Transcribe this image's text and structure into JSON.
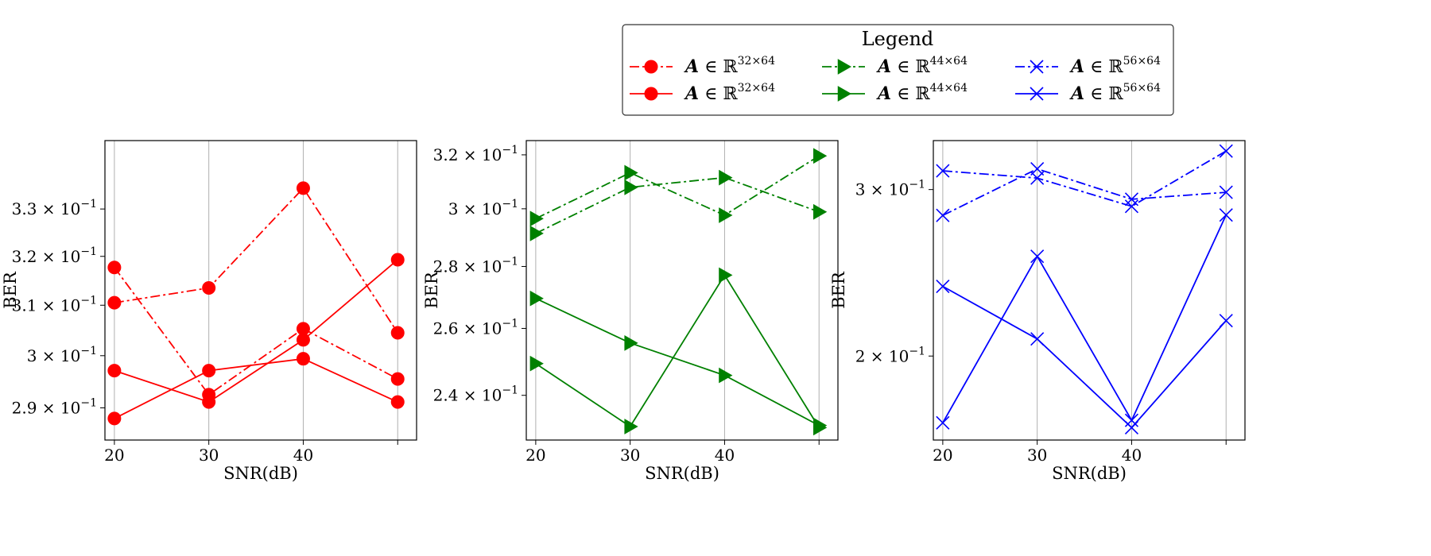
{
  "chart_data": [
    {
      "type": "line",
      "xlabel": "SNR(dB)",
      "ylabel": "BER",
      "x_ticks": [
        20,
        30,
        40
      ],
      "xlim": [
        19,
        52
      ],
      "y_scale": "log",
      "ylim": [
        0.284,
        0.345
      ],
      "y_ticks": [
        {
          "value": 0.29,
          "mantissa": "2.9",
          "exp": "−1"
        },
        {
          "value": 0.3,
          "mantissa": "3",
          "exp": "−1"
        },
        {
          "value": 0.31,
          "mantissa": "3.1",
          "exp": "−1"
        },
        {
          "value": 0.32,
          "mantissa": "3.2",
          "exp": "−1"
        },
        {
          "value": 0.33,
          "mantissa": "3.3",
          "exp": "−1"
        }
      ],
      "grid": "x",
      "color": "#ff0000",
      "series": [
        {
          "style": "dashdot",
          "marker": "circle",
          "x": [
            20,
            30,
            40,
            50
          ],
          "y": [
            0.3105,
            0.3135,
            0.3345,
            0.3045
          ]
        },
        {
          "style": "dashdot",
          "marker": "circle",
          "x": [
            20,
            30,
            40,
            50
          ],
          "y": [
            0.3177,
            0.2925,
            0.3053,
            0.2955
          ]
        },
        {
          "style": "solid",
          "marker": "circle",
          "x": [
            20,
            30,
            40,
            50
          ],
          "y": [
            0.2971,
            0.2911,
            0.3031,
            0.3193
          ]
        },
        {
          "style": "solid",
          "marker": "circle",
          "x": [
            20,
            30,
            40,
            50
          ],
          "y": [
            0.288,
            0.2971,
            0.2994,
            0.2911
          ]
        }
      ]
    },
    {
      "type": "line",
      "xlabel": "SNR(dB)",
      "ylabel": "BER",
      "x_ticks": [
        20,
        30,
        40
      ],
      "xlim": [
        19,
        52
      ],
      "y_scale": "log",
      "ylim": [
        0.2275,
        0.3255
      ],
      "y_ticks": [
        {
          "value": 0.24,
          "mantissa": "2.4",
          "exp": "−1"
        },
        {
          "value": 0.26,
          "mantissa": "2.6",
          "exp": "−1"
        },
        {
          "value": 0.28,
          "mantissa": "2.8",
          "exp": "−1"
        },
        {
          "value": 0.3,
          "mantissa": "3",
          "exp": "−1"
        },
        {
          "value": 0.32,
          "mantissa": "3.2",
          "exp": "−1"
        }
      ],
      "grid": "x",
      "color": "#008000",
      "series": [
        {
          "style": "dashdot",
          "marker": "triangle-right",
          "x": [
            20,
            30,
            40,
            50
          ],
          "y": [
            0.2965,
            0.3132,
            0.2977,
            0.3196
          ]
        },
        {
          "style": "dashdot",
          "marker": "triangle-right",
          "x": [
            20,
            30,
            40,
            50
          ],
          "y": [
            0.2913,
            0.3078,
            0.3114,
            0.2989
          ]
        },
        {
          "style": "solid",
          "marker": "triangle-right",
          "x": [
            20,
            30,
            40,
            50
          ],
          "y": [
            0.2695,
            0.2555,
            0.2458,
            0.2315
          ]
        },
        {
          "style": "solid",
          "marker": "triangle-right",
          "x": [
            20,
            30,
            40,
            50
          ],
          "y": [
            0.2493,
            0.2312,
            0.2771,
            0.2309
          ]
        }
      ]
    },
    {
      "type": "line",
      "xlabel": "SNR(dB)",
      "ylabel": "BER",
      "x_ticks": [
        20,
        30,
        40
      ],
      "xlim": [
        19,
        52
      ],
      "y_scale": "log",
      "ylim": [
        0.163,
        0.338
      ],
      "y_ticks": [
        {
          "value": 0.2,
          "mantissa": "2",
          "exp": "−1"
        },
        {
          "value": 0.3,
          "mantissa": "3",
          "exp": "−1"
        }
      ],
      "grid": "x",
      "color": "#0000ff",
      "series": [
        {
          "style": "dashdot",
          "marker": "x",
          "x": [
            20,
            30,
            40,
            50
          ],
          "y": [
            0.314,
            0.3085,
            0.288,
            0.3295
          ]
        },
        {
          "style": "dashdot",
          "marker": "x",
          "x": [
            20,
            30,
            40,
            50
          ],
          "y": [
            0.2817,
            0.3155,
            0.293,
            0.298
          ]
        },
        {
          "style": "solid",
          "marker": "x",
          "x": [
            20,
            30,
            40,
            50
          ],
          "y": [
            0.237,
            0.2085,
            0.168,
            0.218
          ]
        },
        {
          "style": "solid",
          "marker": "x",
          "x": [
            20,
            30,
            40,
            50
          ],
          "y": [
            0.17,
            0.255,
            0.171,
            0.282
          ]
        }
      ]
    }
  ],
  "legend": {
    "title": "Legend",
    "placement": "top-right",
    "ncol": 3,
    "entries": [
      {
        "label": "A ∈ ℝ",
        "exp": "32×64",
        "style": "dashdot",
        "marker": "circle",
        "color": "#ff0000"
      },
      {
        "label": "A ∈ ℝ",
        "exp": "32×64",
        "style": "solid",
        "marker": "circle",
        "color": "#ff0000"
      },
      {
        "label": "A ∈ ℝ",
        "exp": "44×64",
        "style": "dashdot",
        "marker": "triangle-right",
        "color": "#008000"
      },
      {
        "label": "A ∈ ℝ",
        "exp": "44×64",
        "style": "solid",
        "marker": "triangle-right",
        "color": "#008000"
      },
      {
        "label": "A ∈ ℝ",
        "exp": "56×64",
        "style": "dashdot",
        "marker": "x",
        "color": "#0000ff"
      },
      {
        "label": "A ∈ ℝ",
        "exp": "56×64",
        "style": "solid",
        "marker": "x",
        "color": "#0000ff"
      }
    ]
  }
}
